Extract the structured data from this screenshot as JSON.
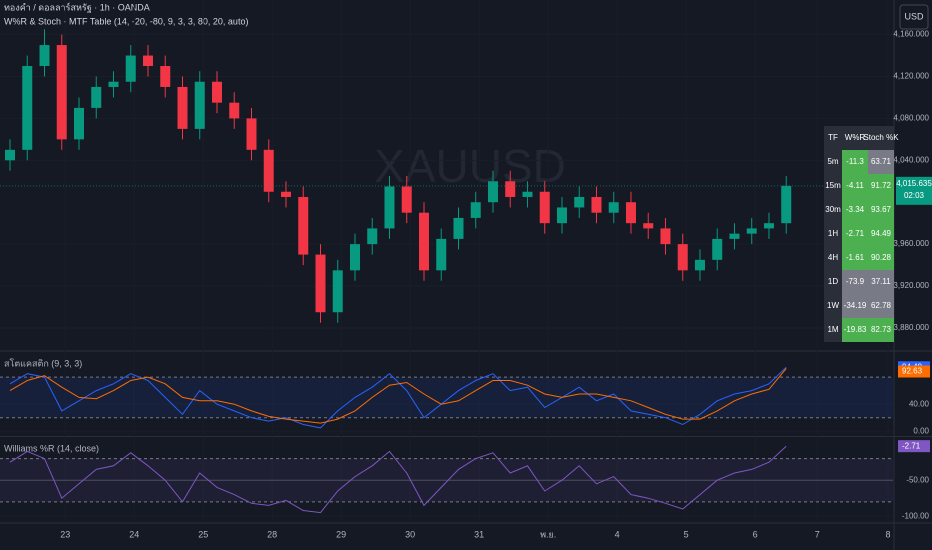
{
  "header": {
    "symbol": "ทองคำ / ดอลลาร์สหรัฐ · 1h · OANDA",
    "indicator": "W%R & Stoch - MTF Table (14, -20, -80, 9, 3, 3, 80, 20, auto)",
    "watermark": "XAUUSD",
    "currency": "USD",
    "countdown": "02:03"
  },
  "chart_data": [
    {
      "type": "candlestick",
      "xlim": [
        -0.58,
        51.19
      ],
      "ylim": [
        3858,
        4193
      ],
      "xticks": [
        {
          "value": 3.2,
          "label": "23"
        },
        {
          "value": 7.2,
          "label": "24"
        },
        {
          "value": 11.2,
          "label": "25"
        },
        {
          "value": 15.2,
          "label": "28"
        },
        {
          "value": 19.2,
          "label": "29"
        },
        {
          "value": 23.2,
          "label": "30"
        },
        {
          "value": 27.2,
          "label": "31"
        },
        {
          "value": 31.2,
          "label": "พ.ย."
        },
        {
          "value": 35.2,
          "label": "4"
        },
        {
          "value": 39.2,
          "label": "5"
        },
        {
          "value": 43.2,
          "label": "6"
        },
        {
          "value": 46.8,
          "label": "7"
        },
        {
          "value": 50.9,
          "label": "8"
        }
      ],
      "yticks": [
        {
          "value": 3880,
          "label": "3,880.000"
        },
        {
          "value": 3920,
          "label": "3,920.000"
        },
        {
          "value": 3960,
          "label": "3,960.000"
        },
        {
          "value": 4040,
          "label": "4,040.000"
        },
        {
          "value": 4080,
          "label": "4,080.000"
        },
        {
          "value": 4120,
          "label": "4,120.000"
        },
        {
          "value": 4160,
          "label": "4,160.000"
        }
      ],
      "up_color": "#089981",
      "down_color": "#f23645",
      "open": [
        4040,
        4050,
        4130,
        4150,
        4060,
        4090,
        4110,
        4115,
        4140,
        4130,
        4110,
        4070,
        4115,
        4095,
        4080,
        4050,
        4010,
        4005,
        3950,
        3895,
        3935,
        3960,
        3975,
        4015,
        3990,
        3935,
        3965,
        3985,
        4000,
        4020,
        4005,
        4010,
        3980,
        3995,
        4005,
        3990,
        4000,
        3980,
        3975,
        3960,
        3935,
        3945,
        3965,
        3970,
        3975,
        3980
      ],
      "high": [
        4060,
        4140,
        4165,
        4160,
        4100,
        4120,
        4125,
        4150,
        4150,
        4140,
        4120,
        4125,
        4125,
        4105,
        4090,
        4060,
        4020,
        4015,
        3960,
        3945,
        3970,
        3985,
        4025,
        4025,
        4000,
        3975,
        3995,
        4010,
        4030,
        4030,
        4020,
        4020,
        4005,
        4015,
        4015,
        4010,
        4010,
        3990,
        3985,
        3970,
        3955,
        3975,
        3980,
        3985,
        3990,
        4025
      ],
      "low": [
        4030,
        4040,
        4120,
        4050,
        4050,
        4080,
        4100,
        4105,
        4120,
        4100,
        4060,
        4060,
        4085,
        4070,
        4040,
        4000,
        3995,
        3940,
        3885,
        3885,
        3925,
        3950,
        3965,
        3980,
        3925,
        3925,
        3955,
        3975,
        3990,
        3995,
        3995,
        3970,
        3970,
        3985,
        3980,
        3980,
        3970,
        3965,
        3950,
        3925,
        3925,
        3935,
        3955,
        3960,
        3965,
        3970
      ],
      "close": [
        4050,
        4130,
        4150,
        4060,
        4090,
        4110,
        4115,
        4140,
        4130,
        4110,
        4070,
        4115,
        4095,
        4080,
        4050,
        4010,
        4005,
        3950,
        3895,
        3935,
        3960,
        3975,
        4015,
        3990,
        3935,
        3965,
        3985,
        4000,
        4020,
        4005,
        4010,
        3980,
        3995,
        4005,
        3990,
        4000,
        3980,
        3975,
        3960,
        3935,
        3945,
        3965,
        3970,
        3975,
        3980,
        4015.635
      ],
      "close_labels": {
        "45": "4,015.635"
      }
    },
    {
      "type": "line",
      "title": "สโตแคสติก (9, 3, 3)",
      "ylim": [
        -7,
        117
      ],
      "yticks": [
        {
          "value": 0,
          "label": "0.00"
        },
        {
          "value": 40,
          "label": "40.00"
        }
      ],
      "bands": [
        20,
        80
      ],
      "band_color": "#2962ff",
      "series": [
        {
          "color": "#2962ff",
          "values": [
            70,
            85,
            80,
            30,
            45,
            60,
            70,
            85,
            75,
            50,
            25,
            60,
            40,
            30,
            20,
            15,
            20,
            10,
            5,
            30,
            50,
            65,
            85,
            60,
            20,
            40,
            60,
            75,
            85,
            60,
            65,
            35,
            50,
            65,
            45,
            55,
            30,
            25,
            20,
            10,
            25,
            45,
            55,
            60,
            70,
            94.49
          ]
        },
        {
          "color": "#ff6d00",
          "values": [
            60,
            75,
            82,
            65,
            50,
            48,
            60,
            75,
            80,
            70,
            50,
            45,
            45,
            40,
            30,
            22,
            18,
            15,
            12,
            18,
            30,
            50,
            68,
            72,
            55,
            40,
            45,
            60,
            75,
            75,
            68,
            55,
            50,
            55,
            55,
            50,
            45,
            35,
            25,
            18,
            18,
            30,
            45,
            55,
            62,
            92.63
          ]
        }
      ]
    },
    {
      "type": "line",
      "title": "Williams %R (14, close)",
      "ylim": [
        -108,
        10
      ],
      "yticks": [
        {
          "value": -50,
          "label": "-50.00"
        },
        {
          "value": -100,
          "label": "-100.00"
        }
      ],
      "bands": [
        -80,
        -20
      ],
      "midline": -50,
      "band_color": "#7e57c2",
      "series": [
        {
          "color": "#7e57c2",
          "values": [
            -25,
            -10,
            -20,
            -75,
            -55,
            -35,
            -30,
            -12,
            -30,
            -50,
            -80,
            -40,
            -60,
            -70,
            -82,
            -85,
            -78,
            -92,
            -95,
            -65,
            -45,
            -30,
            -10,
            -40,
            -85,
            -60,
            -35,
            -20,
            -12,
            -40,
            -30,
            -65,
            -50,
            -30,
            -55,
            -45,
            -70,
            -75,
            -82,
            -90,
            -70,
            -50,
            -40,
            -35,
            -25,
            -2.71
          ]
        }
      ]
    }
  ],
  "table": {
    "columns": [
      "TF",
      "W%R",
      "Stoch %K"
    ],
    "wr_overbought": -20,
    "stoch_overbought": 80,
    "hot_color": "#4caf50",
    "cold_color": "#787b86",
    "rows": [
      [
        "5m",
        -11.3,
        63.71
      ],
      [
        "15m",
        -4.11,
        91.72
      ],
      [
        "30m",
        -3.34,
        93.67
      ],
      [
        "1H",
        -2.71,
        94.49
      ],
      [
        "4H",
        -1.61,
        90.28
      ],
      [
        "1D",
        -73.9,
        37.11
      ],
      [
        "1W",
        -34.19,
        62.78
      ],
      [
        "1M",
        -19.83,
        82.73
      ]
    ]
  }
}
